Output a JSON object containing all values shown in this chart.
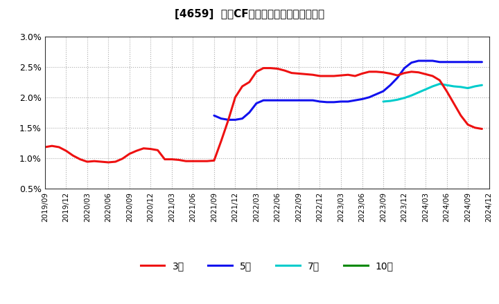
{
  "title": "[4659]  営業CFマージンの標準偏差の推移",
  "ylim": [
    0.005,
    0.03
  ],
  "yticks": [
    0.005,
    0.01,
    0.015,
    0.02,
    0.025,
    0.03
  ],
  "ytick_labels": [
    "0.5%",
    "1.0%",
    "1.5%",
    "2.0%",
    "2.5%",
    "3.0%"
  ],
  "bg_color": "#f5f5f5",
  "plot_bg_color": "#f0f0f0",
  "grid_color": "#aaaaaa",
  "series_3year": {
    "color": "#ee1111",
    "label": "3年",
    "x": [
      0,
      1,
      2,
      3,
      4,
      5,
      6,
      7,
      8,
      9,
      10,
      11,
      12,
      13,
      14,
      15,
      16,
      17,
      18,
      19,
      20,
      21,
      22,
      23,
      24,
      25,
      26,
      27,
      28,
      29,
      30,
      31,
      32,
      33,
      34,
      35,
      36,
      37,
      38,
      39,
      40,
      41,
      42,
      43,
      44,
      45,
      46,
      47,
      48,
      49,
      50,
      51,
      52,
      53,
      54,
      55,
      56,
      57,
      58,
      59,
      60,
      61,
      62
    ],
    "y": [
      0.0118,
      0.012,
      0.0118,
      0.0112,
      0.0104,
      0.0098,
      0.0094,
      0.0095,
      0.0094,
      0.0093,
      0.0094,
      0.0099,
      0.0107,
      0.0112,
      0.0116,
      0.0115,
      0.0113,
      0.0098,
      0.0098,
      0.0097,
      0.0095,
      0.0095,
      0.0095,
      0.0095,
      0.0096,
      0.0128,
      0.0162,
      0.02,
      0.0218,
      0.0225,
      0.0242,
      0.0248,
      0.0248,
      0.0247,
      0.0244,
      0.024,
      0.0239,
      0.0238,
      0.0237,
      0.0235,
      0.0235,
      0.0235,
      0.0236,
      0.0237,
      0.0235,
      0.0239,
      0.0242,
      0.0242,
      0.0241,
      0.0239,
      0.0236,
      0.024,
      0.0242,
      0.0241,
      0.0238,
      0.0235,
      0.0228,
      0.021,
      0.019,
      0.017,
      0.0155,
      0.015,
      0.0148
    ]
  },
  "series_5year": {
    "color": "#1111ee",
    "label": "5年",
    "x": [
      24,
      25,
      26,
      27,
      28,
      29,
      30,
      31,
      32,
      33,
      34,
      35,
      36,
      37,
      38,
      39,
      40,
      41,
      42,
      43,
      44,
      45,
      46,
      47,
      48,
      49,
      50,
      51,
      52,
      53,
      54,
      55,
      56,
      57,
      58,
      59,
      60,
      61,
      62
    ],
    "y": [
      0.017,
      0.0165,
      0.0163,
      0.0163,
      0.0165,
      0.0175,
      0.019,
      0.0195,
      0.0195,
      0.0195,
      0.0195,
      0.0195,
      0.0195,
      0.0195,
      0.0195,
      0.0193,
      0.0192,
      0.0192,
      0.0193,
      0.0193,
      0.0195,
      0.0197,
      0.02,
      0.0205,
      0.021,
      0.022,
      0.0232,
      0.0248,
      0.0257,
      0.026,
      0.026,
      0.026,
      0.0258,
      0.0258,
      0.0258,
      0.0258,
      0.0258,
      0.0258,
      0.0258
    ]
  },
  "series_7year": {
    "color": "#00cccc",
    "label": "7年",
    "x": [
      48,
      49,
      50,
      51,
      52,
      53,
      54,
      55,
      56,
      57,
      58,
      59,
      60,
      61,
      62
    ],
    "y": [
      0.0193,
      0.0194,
      0.0196,
      0.0199,
      0.0203,
      0.0208,
      0.0213,
      0.0218,
      0.0222,
      0.022,
      0.0218,
      0.0217,
      0.0215,
      0.0218,
      0.022
    ]
  },
  "series_10year": {
    "color": "#008800",
    "label": "10年",
    "x": [],
    "y": []
  },
  "x_tick_labels": [
    "2019/09",
    "2019/12",
    "2020/03",
    "2020/06",
    "2020/09",
    "2020/12",
    "2021/03",
    "2021/06",
    "2021/09",
    "2021/12",
    "2022/03",
    "2022/06",
    "2022/09",
    "2022/12",
    "2023/03",
    "2023/06",
    "2023/09",
    "2023/12",
    "2024/03",
    "2024/06",
    "2024/09",
    "2024/12"
  ],
  "x_tick_positions": [
    0,
    3,
    6,
    9,
    12,
    15,
    18,
    21,
    24,
    27,
    30,
    33,
    36,
    39,
    42,
    45,
    48,
    51,
    54,
    57,
    60,
    63
  ],
  "total_points": 63,
  "legend_labels": [
    "3年",
    "5年",
    "7年",
    "10年"
  ],
  "legend_colors": [
    "#ee1111",
    "#1111ee",
    "#00cccc",
    "#008800"
  ]
}
